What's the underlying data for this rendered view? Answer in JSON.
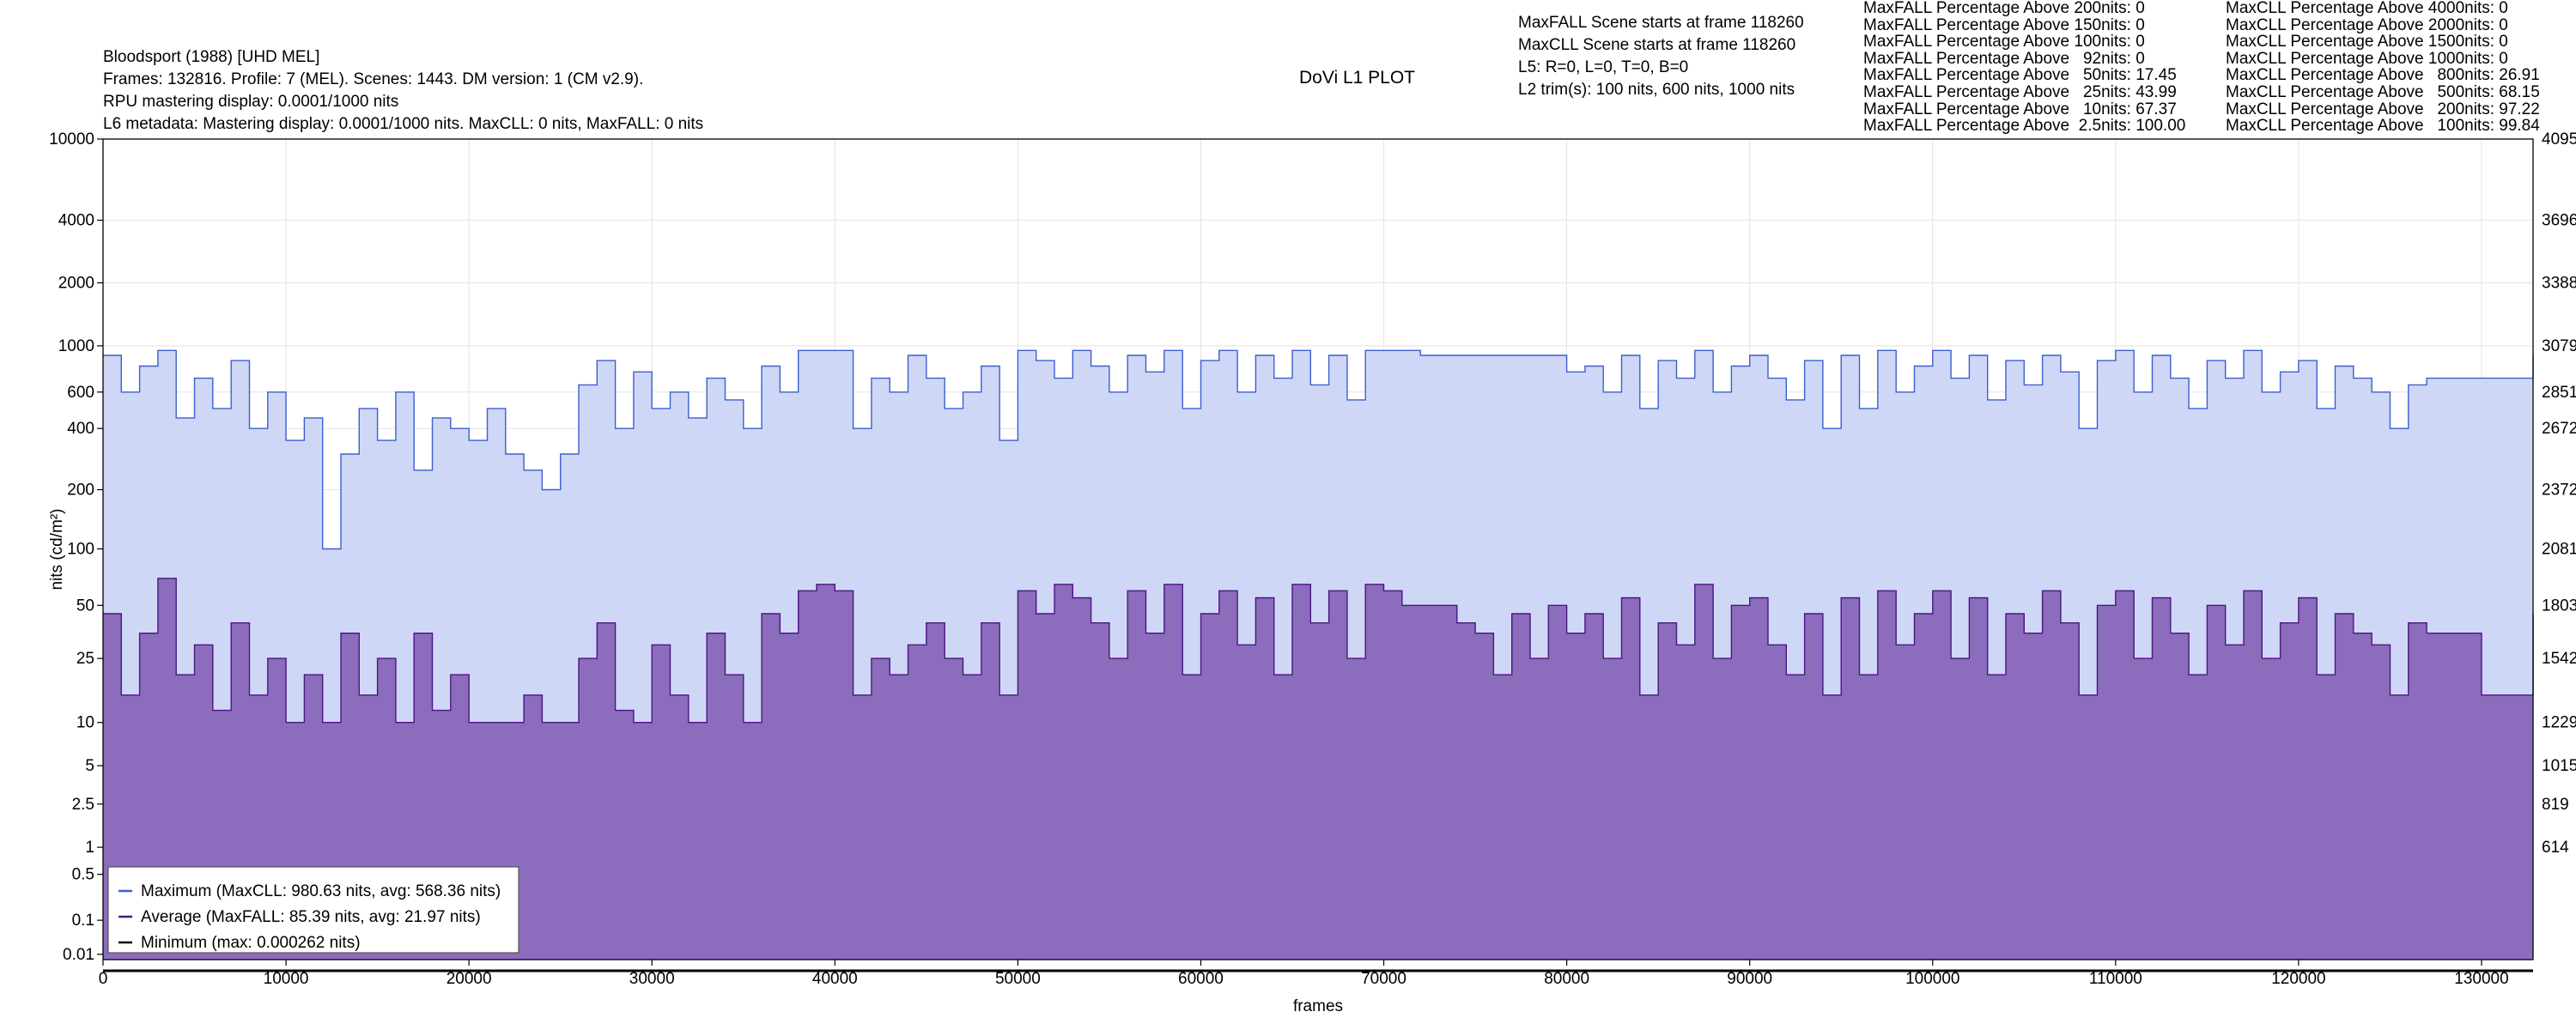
{
  "header": {
    "title": "DoVi L1 PLOT",
    "info_lines": [
      "Bloodsport (1988) [UHD MEL]",
      "Frames: 132816. Profile: 7 (MEL). Scenes: 1443. DM version: 1 (CM v2.9).",
      "RPU mastering display: 0.0001/1000 nits",
      "L6 metadata: Mastering display: 0.0001/1000 nits. MaxCLL: 0 nits, MaxFALL: 0 nits"
    ],
    "scene_lines": [
      "MaxFALL Scene starts at frame 118260",
      "MaxCLL Scene starts at frame 118260",
      "L5: R=0, L=0, T=0, B=0",
      "L2 trim(s): 100 nits, 600 nits, 1000 nits"
    ],
    "maxfall_percentages": [
      "MaxFALL Percentage Above 200nits: 0",
      "MaxFALL Percentage Above 150nits: 0",
      "MaxFALL Percentage Above 100nits: 0",
      "MaxFALL Percentage Above   92nits: 0",
      "MaxFALL Percentage Above   50nits: 17.45",
      "MaxFALL Percentage Above   25nits: 43.99",
      "MaxFALL Percentage Above   10nits: 67.37",
      "MaxFALL Percentage Above  2.5nits: 100.00"
    ],
    "maxcll_percentages": [
      "MaxCLL Percentage Above 4000nits: 0",
      "MaxCLL Percentage Above 2000nits: 0",
      "MaxCLL Percentage Above 1500nits: 0",
      "MaxCLL Percentage Above 1000nits: 0",
      "MaxCLL Percentage Above   800nits: 26.91",
      "MaxCLL Percentage Above   500nits: 68.15",
      "MaxCLL Percentage Above   200nits: 97.22",
      "MaxCLL Percentage Above   100nits: 99.84"
    ]
  },
  "chart_data": {
    "type": "area",
    "title": "DoVi L1 PLOT",
    "xlabel": "frames",
    "ylabel": "nits (cd/m²)",
    "xlim": [
      0,
      132816
    ],
    "ylim": [
      0.005,
      10000
    ],
    "y_scale": "pq",
    "grid": true,
    "legend_position": "bottom-left",
    "x_ticks": [
      0,
      10000,
      20000,
      30000,
      40000,
      50000,
      60000,
      70000,
      80000,
      90000,
      100000,
      110000,
      120000,
      130000
    ],
    "x_tick_labels": [
      "0",
      "10000",
      "20000",
      "30000",
      "40000",
      "50000",
      "60000",
      "70000",
      "80000",
      "90000",
      "100000",
      "110000",
      "120000",
      "130000"
    ],
    "y_ticks": [
      0.01,
      0.1,
      0.5,
      1,
      2.5,
      5,
      10,
      25,
      50,
      100,
      200,
      400,
      600,
      1000,
      2000,
      4000,
      10000
    ],
    "y_tick_labels": [
      "0.01",
      "0.1",
      "0.5",
      "1",
      "2.5",
      "5",
      "10",
      "25",
      "50",
      "100",
      "200",
      "400",
      "600",
      "1000",
      "2000",
      "4000",
      "10000"
    ],
    "right_ticks": [
      {
        "nits": 10000,
        "label": "4095"
      },
      {
        "nits": 4000,
        "label": "3696"
      },
      {
        "nits": 2000,
        "label": "3388"
      },
      {
        "nits": 1000,
        "label": "3079"
      },
      {
        "nits": 600,
        "label": "2851"
      },
      {
        "nits": 400,
        "label": "2672"
      },
      {
        "nits": 200,
        "label": "2372"
      },
      {
        "nits": 100,
        "label": "2081"
      },
      {
        "nits": 50,
        "label": "1803"
      },
      {
        "nits": 25,
        "label": "1542"
      },
      {
        "nits": 10,
        "label": "1229"
      },
      {
        "nits": 5,
        "label": "1015"
      },
      {
        "nits": 2.5,
        "label": "819"
      },
      {
        "nits": 1,
        "label": "614"
      }
    ],
    "series": [
      {
        "name": "Maximum (MaxCLL: 980.63 nits, avg: 568.36 nits)",
        "color": "#3b5fcf",
        "fill": "#cfd7f6",
        "x": [
          0,
          1000,
          2000,
          3000,
          4000,
          5000,
          6000,
          7000,
          8000,
          9000,
          10000,
          11000,
          12000,
          13000,
          14000,
          15000,
          16000,
          17000,
          18000,
          19000,
          20000,
          21000,
          22000,
          23000,
          24000,
          25000,
          26000,
          27000,
          28000,
          29000,
          30000,
          31000,
          32000,
          33000,
          34000,
          35000,
          36000,
          37000,
          38000,
          39000,
          40000,
          41000,
          42000,
          43000,
          44000,
          45000,
          46000,
          47000,
          48000,
          49000,
          50000,
          51000,
          52000,
          53000,
          54000,
          55000,
          56000,
          57000,
          58000,
          59000,
          60000,
          61000,
          62000,
          63000,
          64000,
          65000,
          66000,
          67000,
          68000,
          69000,
          70000,
          71000,
          72000,
          73000,
          74000,
          75000,
          76000,
          77000,
          78000,
          79000,
          80000,
          81000,
          82000,
          83000,
          84000,
          85000,
          86000,
          87000,
          88000,
          89000,
          90000,
          91000,
          92000,
          93000,
          94000,
          95000,
          96000,
          97000,
          98000,
          99000,
          100000,
          101000,
          102000,
          103000,
          104000,
          105000,
          106000,
          107000,
          108000,
          109000,
          110000,
          111000,
          112000,
          113000,
          114000,
          115000,
          116000,
          117000,
          118000,
          119000,
          120000,
          121000,
          122000,
          123000,
          124000,
          125000,
          126000,
          127000,
          128000,
          129000,
          130000,
          131000,
          132000,
          132816
        ],
        "y": [
          900,
          600,
          800,
          950,
          450,
          700,
          500,
          850,
          400,
          600,
          350,
          450,
          100,
          300,
          500,
          350,
          600,
          250,
          450,
          400,
          350,
          500,
          300,
          250,
          200,
          300,
          650,
          850,
          400,
          750,
          500,
          600,
          450,
          700,
          550,
          400,
          800,
          600,
          950,
          950,
          950,
          400,
          700,
          600,
          900,
          700,
          500,
          600,
          800,
          350,
          950,
          850,
          700,
          950,
          800,
          600,
          900,
          750,
          950,
          500,
          850,
          950,
          600,
          900,
          700,
          950,
          650,
          900,
          550,
          950,
          950,
          950,
          900,
          900,
          900,
          900,
          900,
          900,
          900,
          900,
          750,
          800,
          600,
          900,
          500,
          850,
          700,
          950,
          600,
          800,
          900,
          700,
          550,
          850,
          400,
          900,
          500,
          950,
          600,
          800,
          950,
          700,
          900,
          550,
          850,
          650,
          900,
          750,
          400,
          850,
          950,
          600,
          900,
          700,
          500,
          850,
          700,
          950,
          600,
          750,
          850,
          500,
          800,
          700,
          600,
          400,
          650,
          700,
          700,
          700,
          700,
          700,
          700,
          900
        ]
      },
      {
        "name": "Average (MaxFALL: 85.39 nits, avg: 21.97 nits)",
        "color": "#4b1582",
        "fill": "#8c6cbd",
        "x": [
          0,
          1000,
          2000,
          3000,
          4000,
          5000,
          6000,
          7000,
          8000,
          9000,
          10000,
          11000,
          12000,
          13000,
          14000,
          15000,
          16000,
          17000,
          18000,
          19000,
          20000,
          21000,
          22000,
          23000,
          24000,
          25000,
          26000,
          27000,
          28000,
          29000,
          30000,
          31000,
          32000,
          33000,
          34000,
          35000,
          36000,
          37000,
          38000,
          39000,
          40000,
          41000,
          42000,
          43000,
          44000,
          45000,
          46000,
          47000,
          48000,
          49000,
          50000,
          51000,
          52000,
          53000,
          54000,
          55000,
          56000,
          57000,
          58000,
          59000,
          60000,
          61000,
          62000,
          63000,
          64000,
          65000,
          66000,
          67000,
          68000,
          69000,
          70000,
          71000,
          72000,
          73000,
          74000,
          75000,
          76000,
          77000,
          78000,
          79000,
          80000,
          81000,
          82000,
          83000,
          84000,
          85000,
          86000,
          87000,
          88000,
          89000,
          90000,
          91000,
          92000,
          93000,
          94000,
          95000,
          96000,
          97000,
          98000,
          99000,
          100000,
          101000,
          102000,
          103000,
          104000,
          105000,
          106000,
          107000,
          108000,
          109000,
          110000,
          111000,
          112000,
          113000,
          114000,
          115000,
          116000,
          117000,
          118000,
          119000,
          120000,
          121000,
          122000,
          123000,
          124000,
          125000,
          126000,
          127000,
          128000,
          129000,
          130000,
          131000,
          132000,
          132816
        ],
        "y": [
          45,
          15,
          35,
          70,
          20,
          30,
          12,
          40,
          15,
          25,
          10,
          20,
          10,
          35,
          15,
          25,
          10,
          35,
          12,
          20,
          10,
          10,
          10,
          15,
          10,
          10,
          25,
          40,
          12,
          10,
          30,
          15,
          10,
          35,
          20,
          10,
          45,
          35,
          60,
          65,
          60,
          15,
          25,
          20,
          30,
          40,
          25,
          20,
          40,
          15,
          60,
          45,
          65,
          55,
          40,
          25,
          60,
          35,
          65,
          20,
          45,
          60,
          30,
          55,
          20,
          65,
          40,
          60,
          25,
          65,
          60,
          50,
          50,
          50,
          40,
          35,
          20,
          45,
          25,
          50,
          35,
          45,
          25,
          55,
          15,
          40,
          30,
          65,
          25,
          50,
          55,
          30,
          20,
          45,
          15,
          55,
          20,
          60,
          30,
          45,
          60,
          25,
          55,
          20,
          45,
          35,
          60,
          40,
          15,
          50,
          60,
          25,
          55,
          35,
          20,
          50,
          30,
          60,
          25,
          40,
          55,
          20,
          45,
          35,
          30,
          15,
          40,
          35,
          35,
          35,
          15,
          15,
          15,
          45
        ]
      },
      {
        "name": "Minimum (max: 0.000262 nits)",
        "color": "#000000",
        "fill": "none",
        "x": [
          0,
          132816
        ],
        "y": [
          0.0001,
          0.0001
        ]
      }
    ]
  }
}
